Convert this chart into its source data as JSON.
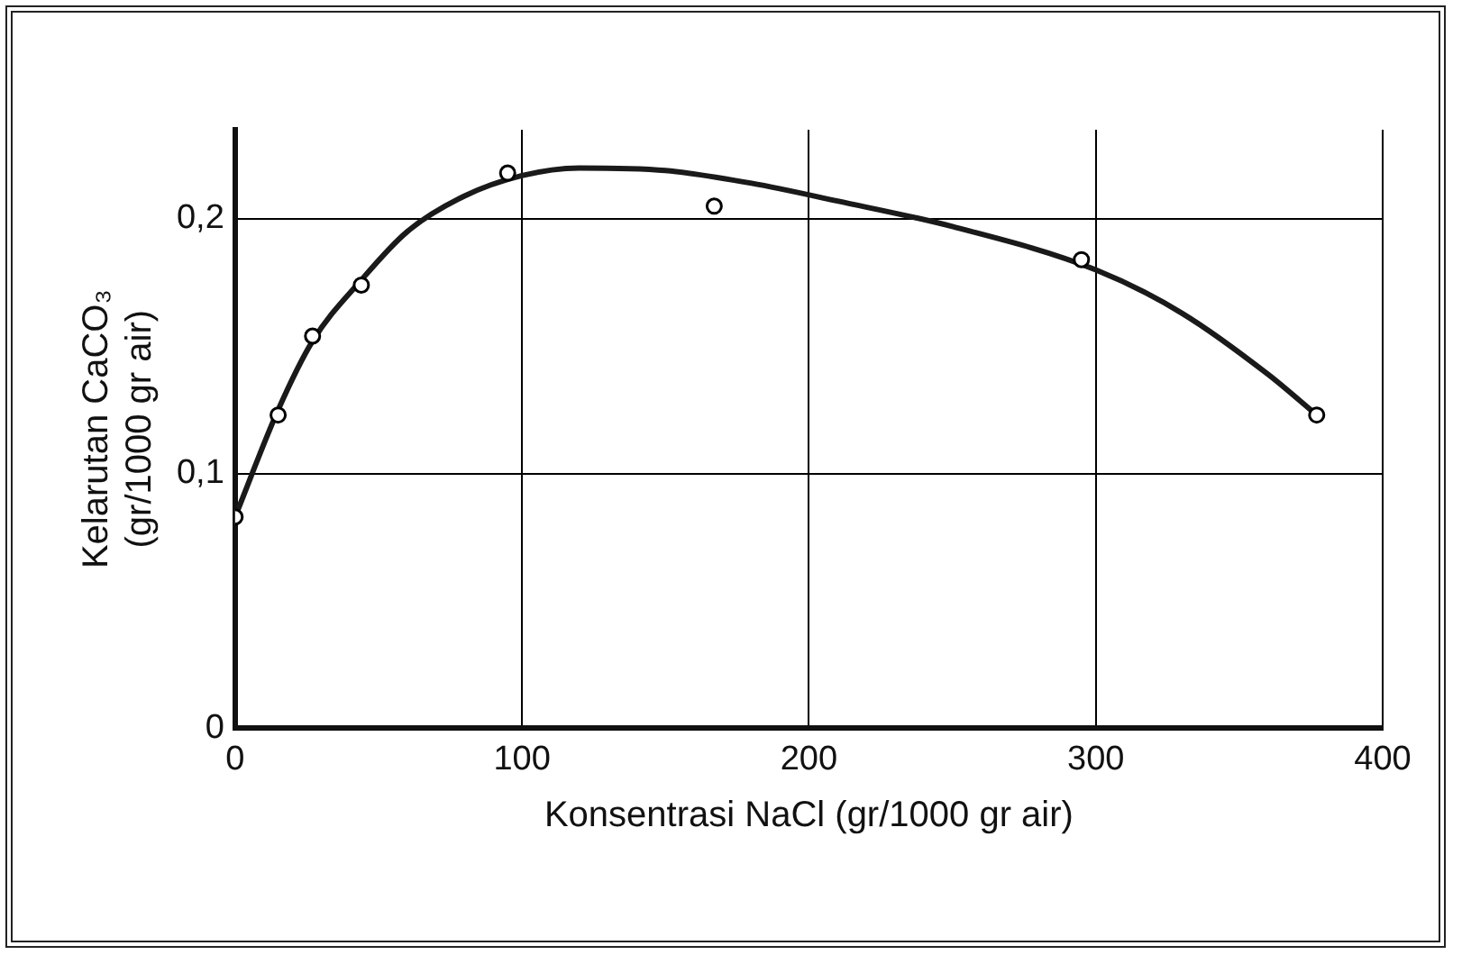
{
  "chart_data": {
    "type": "scatter",
    "xlabel": "Konsentrasi NaCl (gr/1000 gr air)",
    "ylabel": "Kelarutan CaCO₃\n(gr/1000 gr air)",
    "xlim": [
      0,
      400
    ],
    "xticks": [
      0,
      100,
      200,
      300,
      400
    ],
    "ylim": [
      0,
      0.235
    ],
    "yticks": [
      0,
      {
        "value": 0.1,
        "label": "0,1"
      },
      {
        "value": 0.2,
        "label": "0,2"
      }
    ],
    "grid": true,
    "series": [
      {
        "type": "scatter",
        "marker": "circle",
        "color": "#000000",
        "x": [
          0,
          15,
          27,
          44,
          95,
          167,
          295,
          377
        ],
        "values": [
          0.083,
          0.123,
          0.154,
          0.174,
          0.218,
          0.205,
          0.184,
          0.123
        ]
      },
      {
        "type": "line",
        "marker": "none",
        "color": "#1a1a1a",
        "x": [
          0,
          15,
          27,
          44,
          60,
          80,
          100,
          120,
          150,
          180,
          210,
          250,
          300,
          330,
          360,
          377
        ],
        "values": [
          0.083,
          0.125,
          0.152,
          0.176,
          0.195,
          0.209,
          0.217,
          0.22,
          0.219,
          0.214,
          0.207,
          0.197,
          0.18,
          0.163,
          0.139,
          0.123
        ]
      }
    ]
  }
}
